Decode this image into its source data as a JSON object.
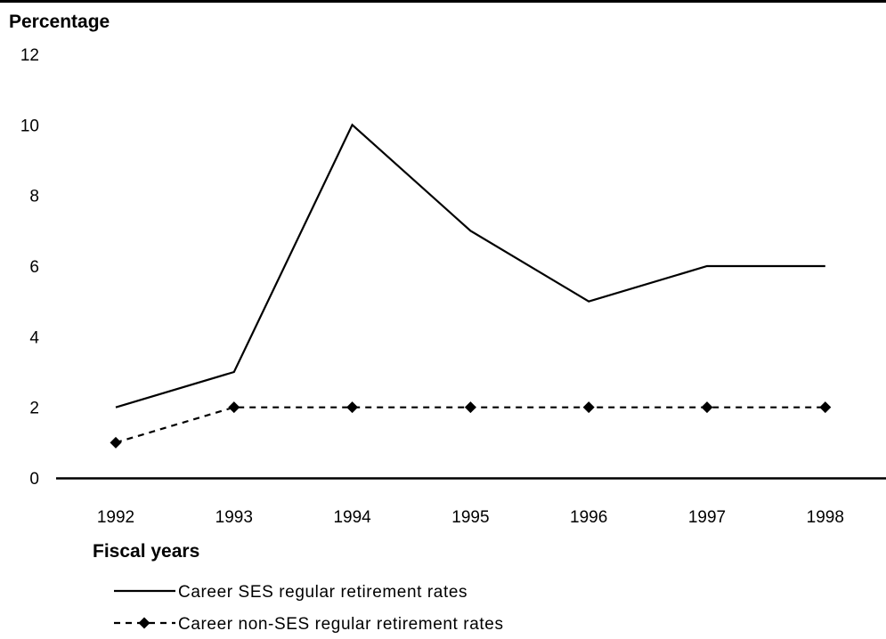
{
  "chart_data": {
    "type": "line",
    "title": "",
    "xlabel": "Fiscal years",
    "ylabel": "Percentage",
    "categories": [
      "1992",
      "1993",
      "1994",
      "1995",
      "1996",
      "1997",
      "1998"
    ],
    "ylim": [
      0,
      12
    ],
    "yticks": [
      "0",
      "2",
      "4",
      "6",
      "8",
      "10",
      "12"
    ],
    "grid": false,
    "legend_position": "bottom",
    "series": [
      {
        "name": "Career SES regular retirement rates",
        "values": [
          2,
          3,
          10,
          7,
          5,
          6,
          6
        ],
        "line_style": "solid",
        "marker": "none",
        "color": "#000000"
      },
      {
        "name": "Career non-SES regular retirement rates",
        "values": [
          1,
          2,
          2,
          2,
          2,
          2,
          2
        ],
        "line_style": "dashed",
        "marker": "diamond",
        "color": "#000000"
      }
    ]
  }
}
